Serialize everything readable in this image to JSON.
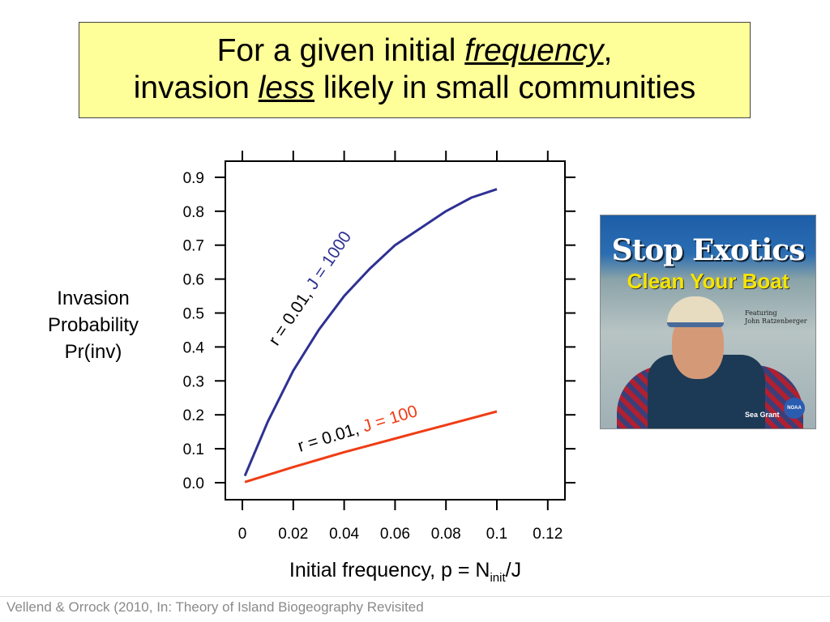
{
  "title": {
    "line1_pre": "For a given initial ",
    "line1_em": "frequency",
    "line1_post": ",",
    "line2_pre": "invasion ",
    "line2_em": "less",
    "line2_post": " likely in small communities"
  },
  "ylabel": {
    "line1": "Invasion",
    "line2": "Probability",
    "line3": "Pr(inv)"
  },
  "xlabel": {
    "pre": "Initial frequency, p = N",
    "sub": "init",
    "post": "/J"
  },
  "footer": "Vellend & Orrock (2010, In: Theory of Island Biogeography Revisited",
  "photo": {
    "headline": "Stop Exotics",
    "subhead": "Clean Your Boat",
    "featuring": "Featuring",
    "name": "John Ratzenberger",
    "logo1": "Sea Grant",
    "logo2": "NOAA"
  },
  "chart_data": {
    "type": "line",
    "xlabel": "Initial frequency, p = Ninit/J",
    "ylabel": "Invasion Probability Pr(inv)",
    "xlim": [
      0,
      0.12
    ],
    "ylim": [
      0,
      0.9
    ],
    "x_ticks": [
      "0",
      "0.02",
      "0.04",
      "0.06",
      "0.08",
      "0.1",
      "0.12"
    ],
    "y_ticks": [
      "0.0",
      "0.1",
      "0.2",
      "0.3",
      "0.4",
      "0.5",
      "0.6",
      "0.7",
      "0.8",
      "0.9"
    ],
    "grid": false,
    "series": [
      {
        "label_black": "r = 0.01, ",
        "label_colored": "J = 1000",
        "color": "#2e3192",
        "x": [
          0.001,
          0.01,
          0.02,
          0.03,
          0.04,
          0.05,
          0.06,
          0.07,
          0.08,
          0.09,
          0.1
        ],
        "y": [
          0.02,
          0.18,
          0.33,
          0.45,
          0.55,
          0.63,
          0.7,
          0.75,
          0.8,
          0.84,
          0.865
        ]
      },
      {
        "label_black": "r = 0.01, ",
        "label_colored": "J = 100",
        "color": "#f03c14",
        "x": [
          0.001,
          0.01,
          0.02,
          0.03,
          0.04,
          0.05,
          0.06,
          0.07,
          0.08,
          0.09,
          0.1
        ],
        "y": [
          0.002,
          0.023,
          0.046,
          0.068,
          0.09,
          0.11,
          0.13,
          0.15,
          0.17,
          0.19,
          0.21
        ]
      }
    ]
  }
}
